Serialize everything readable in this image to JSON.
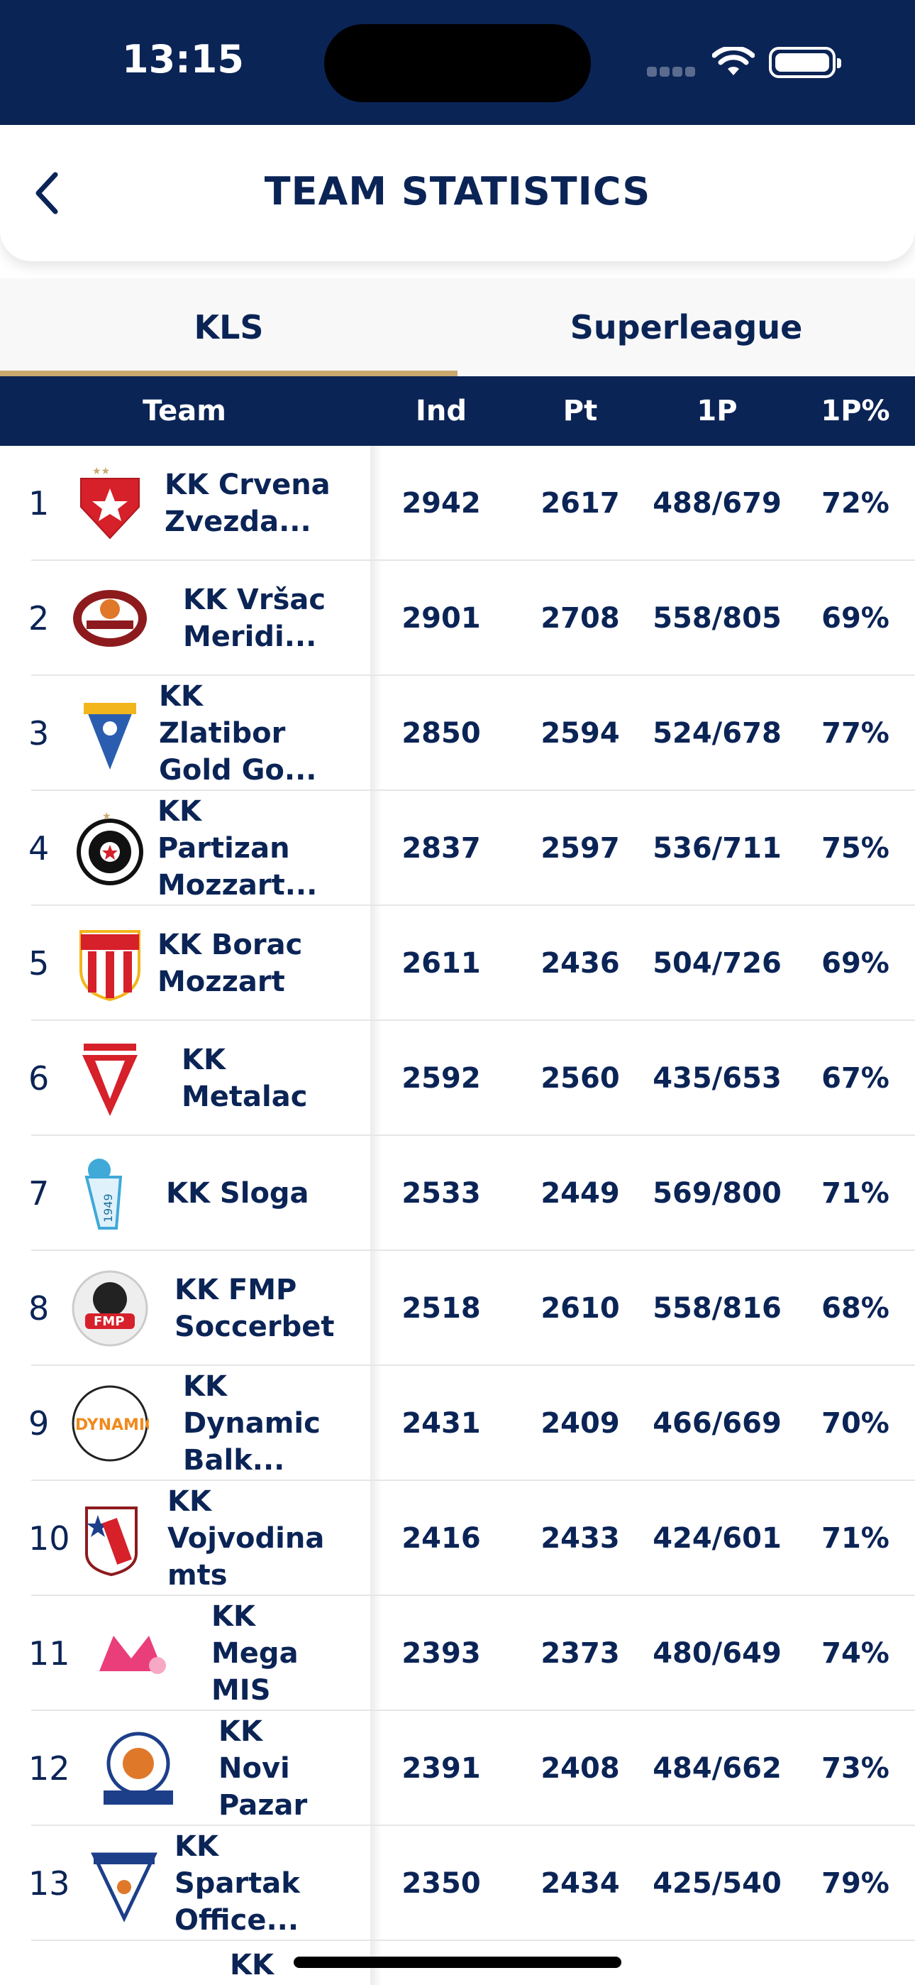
{
  "status": {
    "time": "13:15"
  },
  "header": {
    "title": "TEAM STATISTICS"
  },
  "tabs": [
    {
      "label": "KLS",
      "active": true
    },
    {
      "label": "Superleague",
      "active": false
    }
  ],
  "columns": {
    "team": "Team",
    "ind": "Ind",
    "pt": "Pt",
    "p1": "1P",
    "p1pct": "1P%"
  },
  "colors": {
    "navy": "#0b2456",
    "gold": "#c9a96e"
  },
  "rows": [
    {
      "rank": "1",
      "team": "KK Crvena Zvezda...",
      "ind": "2942",
      "pt": "2617",
      "p1": "488/679",
      "pct": "72%",
      "logo": "crvena-zvezda-logo"
    },
    {
      "rank": "2",
      "team": "KK Vršac Meridi...",
      "ind": "2901",
      "pt": "2708",
      "p1": "558/805",
      "pct": "69%",
      "logo": "vrsac-logo"
    },
    {
      "rank": "3",
      "team": "KK Zlatibor Gold Go...",
      "ind": "2850",
      "pt": "2594",
      "p1": "524/678",
      "pct": "77%",
      "logo": "zlatibor-logo"
    },
    {
      "rank": "4",
      "team": "KK Partizan Mozzart...",
      "ind": "2837",
      "pt": "2597",
      "p1": "536/711",
      "pct": "75%",
      "logo": "partizan-logo"
    },
    {
      "rank": "5",
      "team": "KK Borac Mozzart",
      "ind": "2611",
      "pt": "2436",
      "p1": "504/726",
      "pct": "69%",
      "logo": "borac-logo"
    },
    {
      "rank": "6",
      "team": "KK Metalac",
      "ind": "2592",
      "pt": "2560",
      "p1": "435/653",
      "pct": "67%",
      "logo": "metalac-logo"
    },
    {
      "rank": "7",
      "team": "KK Sloga",
      "ind": "2533",
      "pt": "2449",
      "p1": "569/800",
      "pct": "71%",
      "logo": "sloga-logo"
    },
    {
      "rank": "8",
      "team": "KK FMP Soccerbet",
      "ind": "2518",
      "pt": "2610",
      "p1": "558/816",
      "pct": "68%",
      "logo": "fmp-logo"
    },
    {
      "rank": "9",
      "team": "KK Dynamic Balk...",
      "ind": "2431",
      "pt": "2409",
      "p1": "466/669",
      "pct": "70%",
      "logo": "dynamic-logo"
    },
    {
      "rank": "10",
      "team": "KK Vojvodina mts",
      "ind": "2416",
      "pt": "2433",
      "p1": "424/601",
      "pct": "71%",
      "logo": "vojvodina-logo"
    },
    {
      "rank": "11",
      "team": "KK Mega MIS",
      "ind": "2393",
      "pt": "2373",
      "p1": "480/649",
      "pct": "74%",
      "logo": "mega-logo"
    },
    {
      "rank": "12",
      "team": "KK Novi Pazar",
      "ind": "2391",
      "pt": "2408",
      "p1": "484/662",
      "pct": "73%",
      "logo": "novi-pazar-logo"
    },
    {
      "rank": "13",
      "team": "KK Spartak Office...",
      "ind": "2350",
      "pt": "2434",
      "p1": "425/540",
      "pct": "79%",
      "logo": "spartak-logo"
    },
    {
      "rank": "",
      "team": "KK",
      "ind": "",
      "pt": "",
      "p1": "",
      "pct": "",
      "logo": "partial-logo"
    }
  ]
}
